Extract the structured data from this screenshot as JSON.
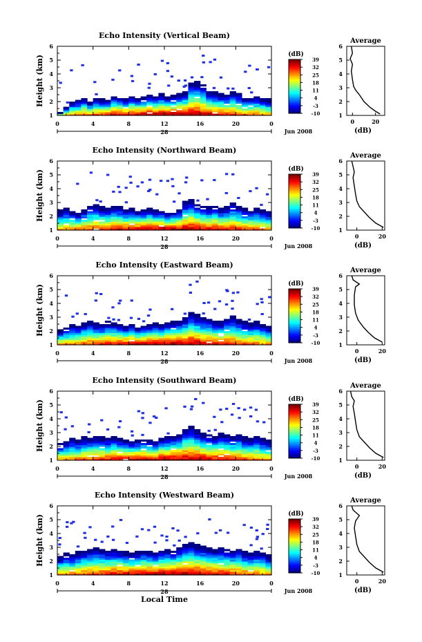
{
  "figure": {
    "date_label": "Jun 2008",
    "day_label": "28",
    "xlabel_bottom": "Local Time",
    "colorbar_unit": "(dB)",
    "colorbar_ticks": [
      "-10",
      "-3",
      "4",
      "11",
      "18",
      "25",
      "32",
      "39"
    ],
    "colorbar_ticklabels": [
      "-10",
      "-3",
      "4",
      "11",
      "18",
      "25",
      "32",
      "39"
    ],
    "profile_title": "Average",
    "profile_xlabel": "(dB)"
  },
  "chart_data": [
    {
      "type": "heatmap",
      "title": "Echo Intensity (Vertical Beam)",
      "ylabel": "Height (km)",
      "xlabel": "",
      "xticks": [
        "0",
        "4",
        "8",
        "12",
        "16",
        "20",
        "0"
      ],
      "ylim": [
        1,
        6
      ],
      "yticks": [
        "1",
        "2",
        "3",
        "4",
        "5",
        "6"
      ],
      "zlim": [
        -10,
        39
      ],
      "columns_top_km": [
        1.2,
        1.6,
        2.0,
        2.1,
        2.3,
        2.0,
        2.3,
        2.2,
        2.1,
        2.5,
        2.4,
        2.2,
        2.4,
        2.3,
        2.4,
        2.5,
        2.4,
        2.6,
        2.4,
        2.5,
        2.6,
        2.7,
        3.4,
        3.5,
        3.2,
        2.8,
        2.7,
        2.6,
        2.5,
        2.7,
        2.6,
        2.3,
        2.3,
        2.4,
        2.3,
        2.2
      ],
      "profile": {
        "type": "line",
        "xlabel": "(dB)",
        "xticks": [
          "0",
          "20"
        ],
        "xlim": [
          -5,
          28
        ],
        "ylim": [
          1,
          6
        ],
        "x": [
          24,
          20,
          15,
          10,
          6,
          3,
          1,
          0,
          -1,
          0,
          -2,
          0,
          -1
        ],
        "y": [
          1.1,
          1.3,
          1.6,
          2.0,
          2.5,
          2.8,
          3.1,
          3.6,
          4.2,
          4.7,
          5.1,
          5.5,
          6.0
        ]
      }
    },
    {
      "type": "heatmap",
      "title": "Echo Intensity (Northward Beam)",
      "ylabel": "Height (km)",
      "xlabel": "",
      "xticks": [
        "0",
        "4",
        "8",
        "12",
        "16",
        "20",
        "0"
      ],
      "ylim": [
        1,
        6
      ],
      "yticks": [
        "1",
        "2",
        "3",
        "4",
        "5",
        "6"
      ],
      "zlim": [
        -10,
        39
      ],
      "columns_top_km": [
        2.5,
        2.6,
        2.4,
        2.3,
        2.5,
        2.8,
        2.9,
        2.7,
        2.6,
        2.8,
        2.7,
        2.5,
        2.6,
        2.4,
        2.5,
        2.6,
        2.5,
        2.4,
        2.3,
        2.4,
        2.5,
        3.1,
        3.3,
        2.9,
        2.8,
        2.7,
        2.8,
        2.6,
        2.7,
        3.0,
        2.8,
        2.6,
        2.5,
        2.6,
        2.5,
        2.4
      ],
      "profile": {
        "type": "line",
        "xlabel": "(dB)",
        "xticks": [
          "0",
          "20"
        ],
        "xlim": [
          -8,
          22
        ],
        "ylim": [
          1,
          6
        ],
        "x": [
          21,
          15,
          10,
          6,
          2,
          0,
          -1,
          -2,
          -3,
          -2,
          -3,
          -4
        ],
        "y": [
          1.2,
          1.5,
          1.9,
          2.3,
          2.7,
          3.1,
          3.6,
          4.2,
          4.8,
          5.2,
          5.6,
          6.0
        ]
      }
    },
    {
      "type": "heatmap",
      "title": "Echo Intensity (Eastward Beam)",
      "ylabel": "Height (km)",
      "xlabel": "",
      "xticks": [
        "0",
        "4",
        "8",
        "12",
        "16",
        "20",
        "0"
      ],
      "ylim": [
        1,
        6
      ],
      "yticks": [
        "1",
        "2",
        "3",
        "4",
        "5",
        "6"
      ],
      "zlim": [
        -10,
        39
      ],
      "columns_top_km": [
        2.1,
        2.3,
        2.5,
        2.4,
        2.6,
        2.7,
        2.6,
        2.5,
        2.7,
        2.6,
        2.5,
        2.4,
        2.5,
        2.3,
        2.4,
        2.5,
        2.6,
        2.5,
        2.6,
        2.7,
        2.8,
        3.0,
        3.4,
        3.2,
        3.0,
        2.9,
        2.8,
        2.7,
        2.9,
        3.1,
        2.9,
        2.7,
        2.6,
        2.7,
        2.5,
        2.4
      ],
      "profile": {
        "type": "line",
        "xlabel": "(dB)",
        "xticks": [
          "0",
          "20"
        ],
        "xlim": [
          -8,
          22
        ],
        "ylim": [
          1,
          6
        ],
        "x": [
          20,
          14,
          9,
          5,
          1,
          -1,
          -2,
          -2,
          -1,
          2,
          -3,
          -4
        ],
        "y": [
          1.2,
          1.5,
          1.9,
          2.3,
          2.8,
          3.3,
          3.9,
          4.6,
          5.2,
          5.4,
          5.7,
          6.0
        ]
      }
    },
    {
      "type": "heatmap",
      "title": "Echo Intensity (Southward Beam)",
      "ylabel": "Height (km)",
      "xlabel": "",
      "xticks": [
        "0",
        "4",
        "8",
        "12",
        "16",
        "20",
        "0"
      ],
      "ylim": [
        1,
        6
      ],
      "yticks": [
        "1",
        "2",
        "3",
        "4",
        "5",
        "6"
      ],
      "zlim": [
        -10,
        39
      ],
      "columns_top_km": [
        2.2,
        2.4,
        2.6,
        2.5,
        2.7,
        2.6,
        2.8,
        2.7,
        2.6,
        2.7,
        2.6,
        2.5,
        2.4,
        2.5,
        2.6,
        2.5,
        2.4,
        2.6,
        2.7,
        2.8,
        2.9,
        3.3,
        3.5,
        3.2,
        3.0,
        2.9,
        2.8,
        3.0,
        2.9,
        2.8,
        2.9,
        2.7,
        2.6,
        2.8,
        2.6,
        2.5
      ],
      "profile": {
        "type": "line",
        "xlabel": "(dB)",
        "xticks": [
          "0",
          "20"
        ],
        "xlim": [
          -8,
          22
        ],
        "ylim": [
          1,
          6
        ],
        "x": [
          21,
          15,
          10,
          6,
          2,
          0,
          -1,
          -2,
          -3,
          -2,
          -4,
          -5
        ],
        "y": [
          1.2,
          1.5,
          1.9,
          2.3,
          2.7,
          3.2,
          3.8,
          4.4,
          4.9,
          5.3,
          5.6,
          6.0
        ]
      }
    },
    {
      "type": "heatmap",
      "title": "Echo Intensity (Westward Beam)",
      "ylabel": "Height (km)",
      "xlabel": "",
      "xticks": [
        "0",
        "4",
        "8",
        "12",
        "16",
        "20",
        "0"
      ],
      "ylim": [
        1,
        6
      ],
      "yticks": [
        "1",
        "2",
        "3",
        "4",
        "5",
        "6"
      ],
      "zlim": [
        -10,
        39
      ],
      "columns_top_km": [
        2.4,
        2.6,
        2.5,
        2.7,
        2.8,
        2.9,
        3.0,
        2.9,
        2.8,
        2.9,
        2.8,
        2.7,
        2.6,
        2.7,
        2.8,
        2.7,
        2.6,
        2.8,
        2.9,
        2.8,
        3.0,
        3.3,
        3.4,
        3.2,
        3.1,
        3.0,
        2.9,
        3.0,
        2.9,
        2.8,
        2.9,
        2.7,
        2.6,
        2.7,
        2.6,
        2.5
      ],
      "profile": {
        "type": "line",
        "xlabel": "(dB)",
        "xticks": [
          "0",
          "20"
        ],
        "xlim": [
          -8,
          22
        ],
        "ylim": [
          1,
          6
        ],
        "x": [
          21,
          15,
          10,
          6,
          2,
          0,
          -1,
          -2,
          -1,
          2,
          -3,
          -4
        ],
        "y": [
          1.2,
          1.5,
          1.9,
          2.3,
          2.7,
          3.2,
          3.8,
          4.4,
          4.9,
          5.3,
          5.7,
          6.0
        ]
      }
    }
  ]
}
